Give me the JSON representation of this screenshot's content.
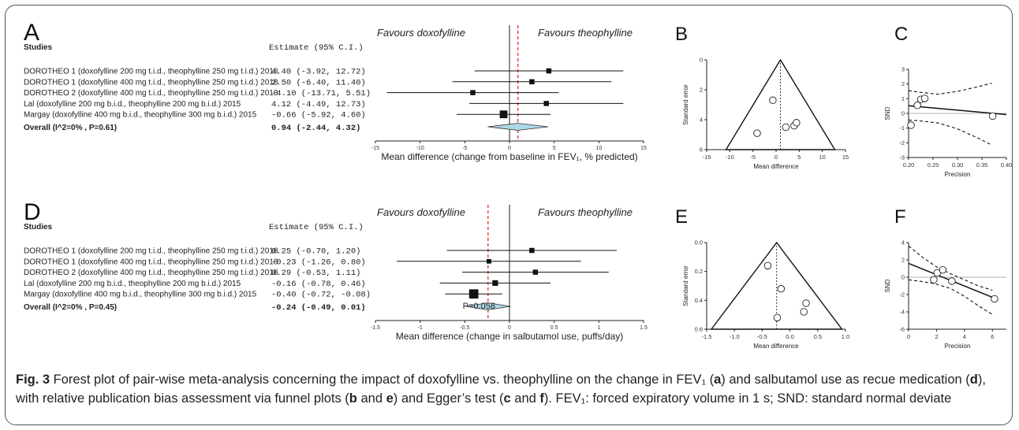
{
  "chart_data": [
    {
      "panel": "A",
      "type": "forest",
      "header_studies": "Studies",
      "header_estimate": "Estimate (95% C.I.)",
      "favours_left": "Favours doxofylline",
      "favours_right": "Favours theophylline",
      "xlabel": "Mean difference (change from baseline in FEV₁, % predicted)",
      "xlim": [
        -15,
        15
      ],
      "xticks": [
        -15,
        -10,
        -5,
        0,
        5,
        10,
        15
      ],
      "pooled_line": 0.94,
      "studies": [
        {
          "label": "DOROTHEO 1 (doxofylline 200 mg t.i.d., theophylline 250 mg t.i.d.) 2018",
          "ci_text": "4.40  (-3.92, 12.72)",
          "est": 4.4,
          "lo": -3.92,
          "hi": 12.72,
          "weight": 1
        },
        {
          "label": "DOROTHEO 1 (doxofylline 400 mg t.i.d., theophylline 250 mg t.i.d.) 2018",
          "ci_text": "2.50  (-6.40, 11.40)",
          "est": 2.5,
          "lo": -6.4,
          "hi": 11.4,
          "weight": 1
        },
        {
          "label": "DOROTHEO 2 (doxofylline 400 mg t.i.d., theophylline 250 mg t.i.d.) 2018",
          "ci_text": "-4.10  (-13.71, 5.51)",
          "est": -4.1,
          "lo": -13.71,
          "hi": 5.51,
          "weight": 1
        },
        {
          "label": "Lal (doxofylline 200 mg b.i.d., theophylline 200 mg b.i.d.) 2015",
          "ci_text": "4.12  (-4.49, 12.73)",
          "est": 4.12,
          "lo": -4.49,
          "hi": 12.73,
          "weight": 1
        },
        {
          "label": "Margay (doxofylline 400 mg b.i.d., theophylline 300 mg b.i.d.) 2015",
          "ci_text": "-0.66  (-5.92, 4.60)",
          "est": -0.66,
          "lo": -5.92,
          "hi": 4.6,
          "weight": 1.5
        }
      ],
      "overall": {
        "label": "Overall (I^2=0% , P=0.61)",
        "ci_text": "0.94  (-2.44, 4.32)",
        "est": 0.94,
        "lo": -2.44,
        "hi": 4.32
      },
      "annotation": ""
    },
    {
      "panel": "D",
      "type": "forest",
      "header_studies": "Studies",
      "header_estimate": "Estimate (95% C.I.)",
      "favours_left": "Favours doxofylline",
      "favours_right": "Favours theophylline",
      "xlabel": "Mean difference (change in salbutamol use, puffs/day)",
      "xlim": [
        -1.5,
        1.5
      ],
      "xticks": [
        -1.5,
        -1.0,
        -0.5,
        0,
        0.5,
        1.0,
        1.5
      ],
      "pooled_line": -0.24,
      "studies": [
        {
          "label": "DOROTHEO 1 (doxofylline 200 mg t.i.d., theophylline 250 mg t.i.d.) 2018",
          "ci_text": "0.25  (-0.70, 1.20)",
          "est": 0.25,
          "lo": -0.7,
          "hi": 1.2,
          "weight": 1
        },
        {
          "label": "DOROTHEO 1 (doxofylline 400 mg t.i.d., theophylline 250 mg t.i.d.) 2018",
          "ci_text": "-0.23  (-1.26, 0.80)",
          "est": -0.23,
          "lo": -1.26,
          "hi": 0.8,
          "weight": 0.9
        },
        {
          "label": "DOROTHEO 2 (doxofylline 400 mg t.i.d., theophylline 250 mg t.i.d.) 2018",
          "ci_text": "0.29  (-0.53, 1.11)",
          "est": 0.29,
          "lo": -0.53,
          "hi": 1.11,
          "weight": 1
        },
        {
          "label": "Lal (doxofylline 200 mg b.i.d., theophylline 200 mg b.i.d.) 2015",
          "ci_text": "-0.16  (-0.78, 0.46)",
          "est": -0.16,
          "lo": -0.78,
          "hi": 0.46,
          "weight": 1.1
        },
        {
          "label": "Margay (doxofylline 400 mg b.i.d., theophylline 300 mg b.i.d.) 2015",
          "ci_text": "-0.40  (-0.72, -0.08)",
          "est": -0.4,
          "lo": -0.72,
          "hi": -0.08,
          "weight": 1.8
        }
      ],
      "overall": {
        "label": "Overall (I^2=0% , P=0.45)",
        "ci_text": "-0.24  (-0.49, 0.01)",
        "est": -0.24,
        "lo": -0.49,
        "hi": 0.01
      },
      "annotation": "P=0.058"
    },
    {
      "panel": "B",
      "type": "funnel",
      "xlabel": "Mean difference",
      "ylabel": "Standard error",
      "xlim": [
        -15,
        15
      ],
      "xticks": [
        -15,
        -10,
        -5,
        0,
        5,
        10,
        15
      ],
      "ylim": [
        0,
        6
      ],
      "yticks": [
        0,
        2,
        4,
        6
      ],
      "center": 0.94,
      "points": [
        {
          "x": -0.7,
          "y": 2.7
        },
        {
          "x": 2.1,
          "y": 4.5
        },
        {
          "x": 3.9,
          "y": 4.4
        },
        {
          "x": 4.4,
          "y": 4.2
        },
        {
          "x": -4.1,
          "y": 4.9
        }
      ]
    },
    {
      "panel": "C",
      "type": "egger",
      "xlabel": "Precision",
      "ylabel": "SND",
      "xlim": [
        0.2,
        0.4
      ],
      "xticks": [
        0.2,
        0.25,
        0.3,
        0.35,
        0.4
      ],
      "ylim": [
        -3,
        3
      ],
      "yticks": [
        -3,
        -2,
        -1,
        0,
        1,
        2,
        3
      ],
      "points": [
        {
          "x": 0.205,
          "y": -0.8
        },
        {
          "x": 0.218,
          "y": 0.55
        },
        {
          "x": 0.225,
          "y": 0.95
        },
        {
          "x": 0.233,
          "y": 1.02
        },
        {
          "x": 0.372,
          "y": -0.18
        }
      ],
      "fit": [
        [
          0.19,
          0.52
        ],
        [
          0.4,
          -0.08
        ]
      ],
      "band_upper": [
        [
          0.19,
          1.55
        ],
        [
          0.22,
          1.45
        ],
        [
          0.26,
          1.3
        ],
        [
          0.3,
          1.5
        ],
        [
          0.34,
          1.8
        ],
        [
          0.37,
          2.05
        ]
      ],
      "band_lower": [
        [
          0.19,
          -0.45
        ],
        [
          0.22,
          -0.5
        ],
        [
          0.26,
          -0.65
        ],
        [
          0.3,
          -1.05
        ],
        [
          0.34,
          -1.65
        ],
        [
          0.37,
          -2.15
        ]
      ]
    },
    {
      "panel": "E",
      "type": "funnel",
      "xlabel": "Mean difference",
      "ylabel": "Standard error",
      "xlim": [
        -1.5,
        1.0
      ],
      "xticks": [
        -1.5,
        -1.0,
        -0.5,
        0.0,
        0.5,
        1.0
      ],
      "ylim": [
        0,
        0.6
      ],
      "yticks": [
        0.0,
        0.2,
        0.4,
        0.6
      ],
      "center": -0.24,
      "points": [
        {
          "x": -0.4,
          "y": 0.16
        },
        {
          "x": -0.16,
          "y": 0.32
        },
        {
          "x": 0.29,
          "y": 0.42
        },
        {
          "x": 0.25,
          "y": 0.48
        },
        {
          "x": -0.23,
          "y": 0.52
        }
      ]
    },
    {
      "panel": "F",
      "type": "egger",
      "xlabel": "Precision",
      "ylabel": "SND",
      "xlim": [
        0,
        7
      ],
      "xticks": [
        0,
        2,
        4,
        6
      ],
      "ylim": [
        -6,
        4
      ],
      "yticks": [
        -6,
        -4,
        -2,
        0,
        2,
        4
      ],
      "points": [
        {
          "x": 1.8,
          "y": -0.3
        },
        {
          "x": 2.05,
          "y": 0.5
        },
        {
          "x": 2.45,
          "y": 0.85
        },
        {
          "x": 3.1,
          "y": -0.45
        },
        {
          "x": 6.15,
          "y": -2.5
        }
      ],
      "fit": [
        [
          0,
          1.6
        ],
        [
          6.2,
          -2.45
        ]
      ],
      "band_upper": [
        [
          0,
          3.6
        ],
        [
          1,
          2.3
        ],
        [
          2,
          1.2
        ],
        [
          3,
          0.4
        ],
        [
          4,
          -0.3
        ],
        [
          5,
          -1.0
        ],
        [
          6,
          -1.5
        ]
      ],
      "band_lower": [
        [
          0,
          -0.3
        ],
        [
          1,
          -0.5
        ],
        [
          2,
          -0.8
        ],
        [
          3,
          -1.3
        ],
        [
          4,
          -2.2
        ],
        [
          5,
          -3.3
        ],
        [
          6,
          -4.3
        ]
      ]
    }
  ],
  "caption": {
    "parts": [
      {
        "t": "Fig. 3",
        "b": true
      },
      {
        "t": " Forest plot of pair-wise meta-analysis concerning the impact of doxofylline vs. theophylline on the change in FEV₁ (",
        "b": false
      },
      {
        "t": "a",
        "b": true
      },
      {
        "t": ") and salbutamol use as recue medication (",
        "b": false
      },
      {
        "t": "d",
        "b": true
      },
      {
        "t": "), with relative publication bias assessment via funnel plots (",
        "b": false
      },
      {
        "t": "b",
        "b": true
      },
      {
        "t": " and ",
        "b": false
      },
      {
        "t": "e",
        "b": true
      },
      {
        "t": ") and Egger’s test (",
        "b": false
      },
      {
        "t": "c",
        "b": true
      },
      {
        "t": " and ",
        "b": false
      },
      {
        "t": "f",
        "b": true
      },
      {
        "t": "). FEV₁: forced expiratory volume in 1 s; SND: standard normal deviate",
        "b": false
      }
    ]
  },
  "colors": {
    "diamond": "#add8e6",
    "pooled_line": "#e03030",
    "text": "#222222"
  }
}
